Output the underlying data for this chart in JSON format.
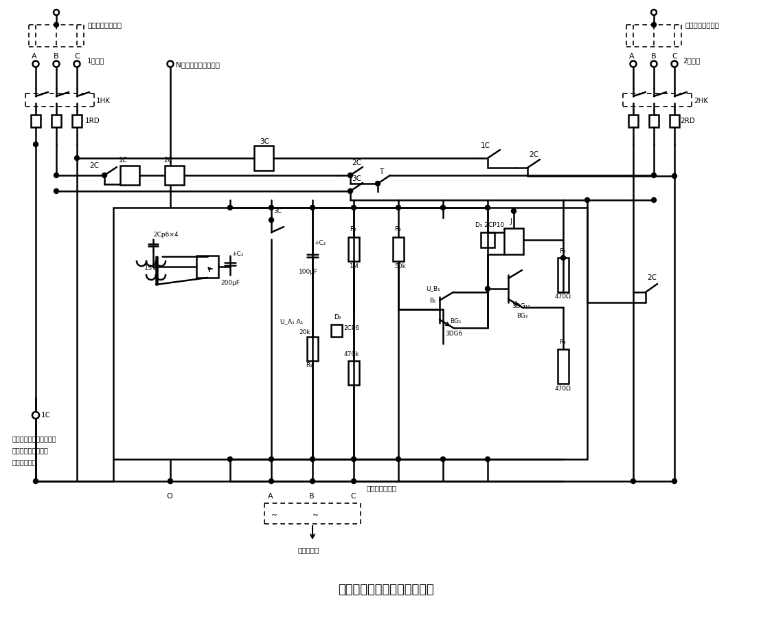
{
  "title": "另一种仅路三相电源自投装置",
  "bg_color": "#ffffff",
  "line_color": "#000000",
  "figsize": [
    11.24,
    8.99
  ],
  "dpi": 100,
  "label_left_top": "单相电源火线接法",
  "label_right_top": "单相电源火线接法",
  "label_1_source": "1号电源",
  "label_2_source": "2号电源",
  "label_N": "N单相或三相电源零线",
  "label_note1": "注：电源为单相电源时，",
  "label_note2": "按虚线所示样法连接",
  "label_note3": "电源和负载。",
  "label_output": "由此接三相负载",
  "label_single": "接单相负载",
  "label_1HK": "1HK",
  "label_2HK": "2HK",
  "label_1RD": "1RD",
  "label_2RD": "2RD"
}
